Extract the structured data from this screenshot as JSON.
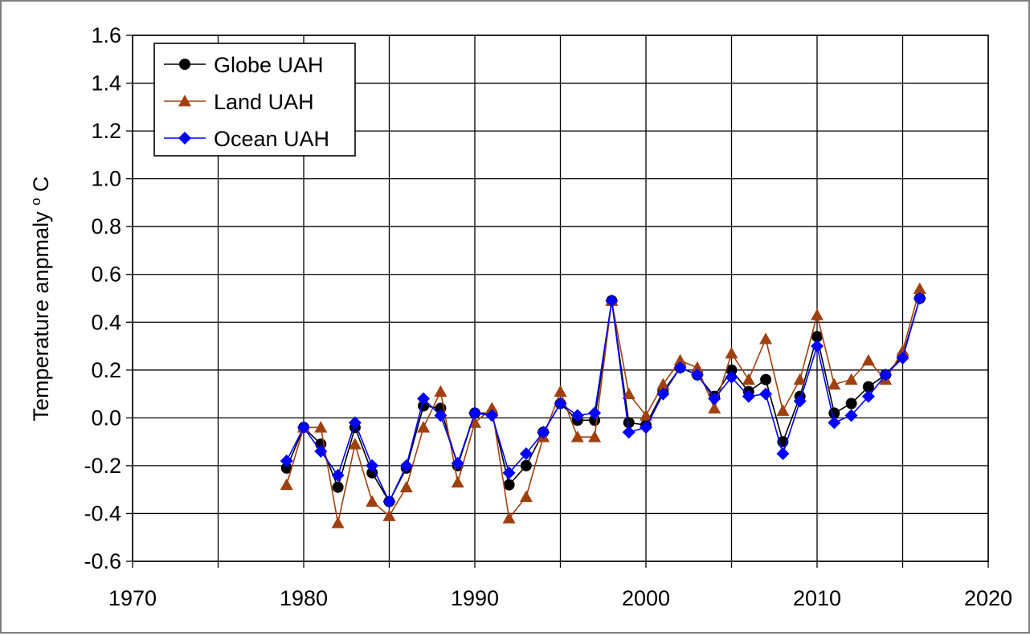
{
  "chart_data": {
    "type": "line",
    "title": "",
    "xlabel": "",
    "ylabel": "Temperature anpmaly",
    "ylabel_unit_sup": "o",
    "ylabel_unit": "C",
    "xlim": [
      1970,
      2020
    ],
    "ylim": [
      -0.6,
      1.6
    ],
    "x_ticks": [
      1970,
      1975,
      1980,
      1985,
      1990,
      1995,
      2000,
      2005,
      2010,
      2015,
      2020
    ],
    "x_tick_labels": [
      "1970",
      "1980",
      "1990",
      "2000",
      "2010",
      "2020"
    ],
    "y_tick_labels": [
      "1.6",
      "1.4",
      "1.2",
      "1.0",
      "0.8",
      "0.6",
      "0.4",
      "0.2",
      "0.0",
      "-0.2",
      "-0.4",
      "-0.6"
    ],
    "grid": true,
    "legend_placement": "top-left",
    "x": [
      1979,
      1980,
      1981,
      1982,
      1983,
      1984,
      1985,
      1986,
      1987,
      1988,
      1989,
      1990,
      1991,
      1992,
      1993,
      1994,
      1995,
      1996,
      1997,
      1998,
      1999,
      2000,
      2001,
      2002,
      2003,
      2004,
      2005,
      2006,
      2007,
      2008,
      2009,
      2010,
      2011,
      2012,
      2013,
      2014,
      2015,
      2016
    ],
    "series": [
      {
        "name": "Globe UAH",
        "color": "#000000",
        "marker": "circle",
        "values": [
          -0.21,
          -0.04,
          -0.11,
          -0.29,
          -0.04,
          -0.23,
          -0.35,
          -0.21,
          0.05,
          0.04,
          -0.2,
          0.02,
          0.02,
          -0.28,
          -0.2,
          -0.06,
          0.06,
          -0.01,
          -0.01,
          0.49,
          -0.02,
          -0.03,
          0.11,
          0.21,
          0.18,
          0.09,
          0.2,
          0.11,
          0.16,
          -0.1,
          0.09,
          0.34,
          0.02,
          0.06,
          0.13,
          0.18,
          0.26,
          0.5
        ]
      },
      {
        "name": "Land UAH",
        "color": "#a0400f",
        "marker": "triangle",
        "values": [
          -0.28,
          -0.04,
          -0.04,
          -0.44,
          -0.11,
          -0.35,
          -0.41,
          -0.29,
          -0.04,
          0.11,
          -0.27,
          -0.02,
          0.04,
          -0.42,
          -0.33,
          -0.08,
          0.11,
          -0.08,
          -0.08,
          0.49,
          0.1,
          0.01,
          0.14,
          0.24,
          0.21,
          0.04,
          0.27,
          0.16,
          0.33,
          0.03,
          0.16,
          0.43,
          0.14,
          0.16,
          0.24,
          0.16,
          0.28,
          0.54
        ]
      },
      {
        "name": "Ocean UAH",
        "color": "#0000ff",
        "marker": "diamond",
        "values": [
          -0.18,
          -0.04,
          -0.14,
          -0.24,
          -0.02,
          -0.2,
          -0.35,
          -0.2,
          0.08,
          0.01,
          -0.19,
          0.02,
          0.01,
          -0.23,
          -0.15,
          -0.06,
          0.06,
          0.01,
          0.02,
          0.49,
          -0.06,
          -0.04,
          0.1,
          0.21,
          0.18,
          0.08,
          0.17,
          0.09,
          0.1,
          -0.15,
          0.07,
          0.3,
          -0.02,
          0.01,
          0.09,
          0.18,
          0.25,
          0.5
        ]
      }
    ]
  }
}
